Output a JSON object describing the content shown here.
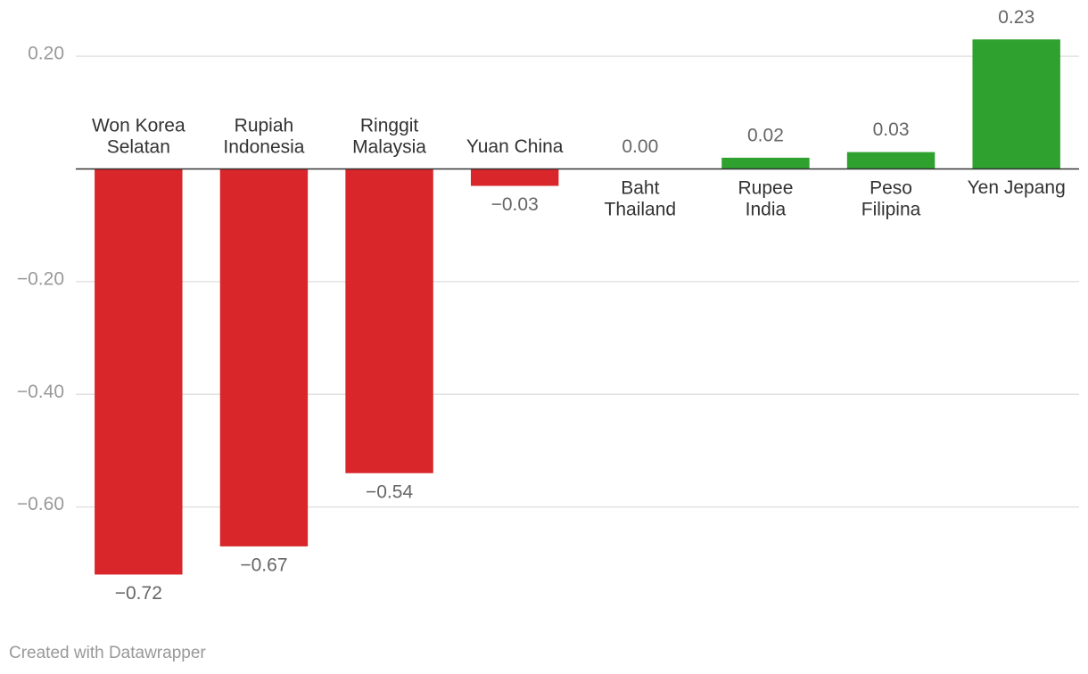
{
  "chart_data": {
    "type": "bar",
    "categories": [
      "Won Korea\nSelatan",
      "Rupiah\nIndonesia",
      "Ringgit\nMalaysia",
      "Yuan China",
      "Baht\nThailand",
      "Rupee\nIndia",
      "Peso\nFilipina",
      "Yen Jepang"
    ],
    "values": [
      -0.72,
      -0.67,
      -0.54,
      -0.03,
      0.0,
      0.02,
      0.03,
      0.23
    ],
    "value_labels": [
      "−0.72",
      "−0.67",
      "−0.54",
      "−0.03",
      "0.00",
      "0.02",
      "0.03",
      "0.23"
    ],
    "colors": [
      "#d8262a",
      "#d8262a",
      "#d8262a",
      "#d8262a",
      "#d8262a",
      "#2ea12e",
      "#2ea12e",
      "#2ea12e"
    ],
    "ylim": [
      -0.8,
      0.3
    ],
    "yticks": [
      {
        "value": 0.2,
        "label": "0.20"
      },
      {
        "value": -0.2,
        "label": "−0.20"
      },
      {
        "value": -0.4,
        "label": "−0.40"
      },
      {
        "value": -0.6,
        "label": "−0.60"
      }
    ],
    "grid": true,
    "footer": "Created with Datawrapper"
  }
}
